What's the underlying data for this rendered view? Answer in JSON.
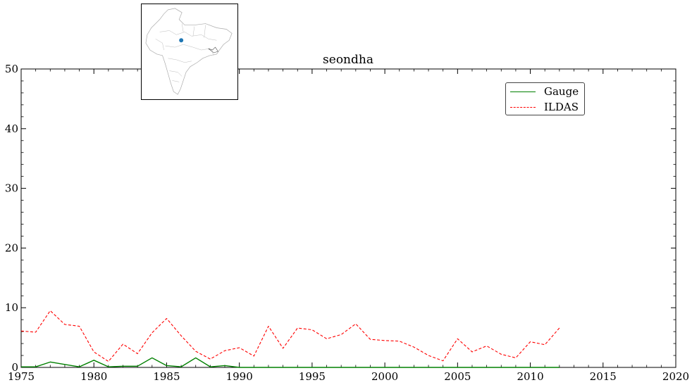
{
  "chart_data": {
    "type": "line",
    "title": "seondha",
    "xlabel": "",
    "ylabel": "",
    "xlim": [
      1975,
      2020
    ],
    "ylim": [
      0,
      50
    ],
    "x_ticks": [
      "1975",
      "1980",
      "1985",
      "1990",
      "1995",
      "2000",
      "2005",
      "2010",
      "2015",
      "2020"
    ],
    "y_ticks": [
      "0",
      "10",
      "20",
      "30",
      "40",
      "50"
    ],
    "legend_position": "top-right",
    "grid": false,
    "series": [
      {
        "name": "Gauge",
        "color": "#008000",
        "style": "solid",
        "x": [
          1975,
          1976,
          1977,
          1978,
          1979,
          1980,
          1981,
          1982,
          1983,
          1984,
          1985,
          1986,
          1987,
          1988,
          1989,
          1990,
          1991,
          1992,
          1993,
          1994,
          1995,
          1996,
          1997,
          1998,
          1999,
          2000,
          2001,
          2002,
          2003,
          2004,
          2005,
          2006,
          2007,
          2008,
          2009,
          2010,
          2011,
          2012
        ],
        "y": [
          0.1,
          0.1,
          0.9,
          0.5,
          0.1,
          1.2,
          0.1,
          0.2,
          0.2,
          1.6,
          0.3,
          0.1,
          1.6,
          0.1,
          0.3,
          0.0,
          0.0,
          0.0,
          0.0,
          0.0,
          0.0,
          0.0,
          0.0,
          0.0,
          0.0,
          0.0,
          0.0,
          0.0,
          0.0,
          0.0,
          0.0,
          0.0,
          0.0,
          0.0,
          0.0,
          0.0,
          0.0,
          0.0
        ]
      },
      {
        "name": "ILDAS",
        "color": "#ff0000",
        "style": "dashed",
        "x": [
          1975,
          1976,
          1977,
          1978,
          1979,
          1980,
          1981,
          1982,
          1983,
          1984,
          1985,
          1986,
          1987,
          1988,
          1989,
          1990,
          1991,
          1992,
          1993,
          1994,
          1995,
          1996,
          1997,
          1998,
          1999,
          2000,
          2001,
          2002,
          2003,
          2004,
          2005,
          2006,
          2007,
          2008,
          2009,
          2010,
          2011,
          2012
        ],
        "y": [
          6.1,
          5.9,
          9.5,
          7.2,
          6.9,
          2.6,
          1.0,
          3.9,
          2.3,
          5.8,
          8.2,
          5.3,
          2.7,
          1.4,
          2.8,
          3.3,
          1.9,
          6.9,
          3.2,
          6.6,
          6.3,
          4.8,
          5.5,
          7.3,
          4.7,
          4.5,
          4.4,
          3.4,
          2.0,
          1.1,
          4.8,
          2.6,
          3.6,
          2.2,
          1.6,
          4.3,
          3.8,
          6.6
        ]
      }
    ]
  },
  "map_inset": {
    "marker_color": "#1f77b4"
  }
}
